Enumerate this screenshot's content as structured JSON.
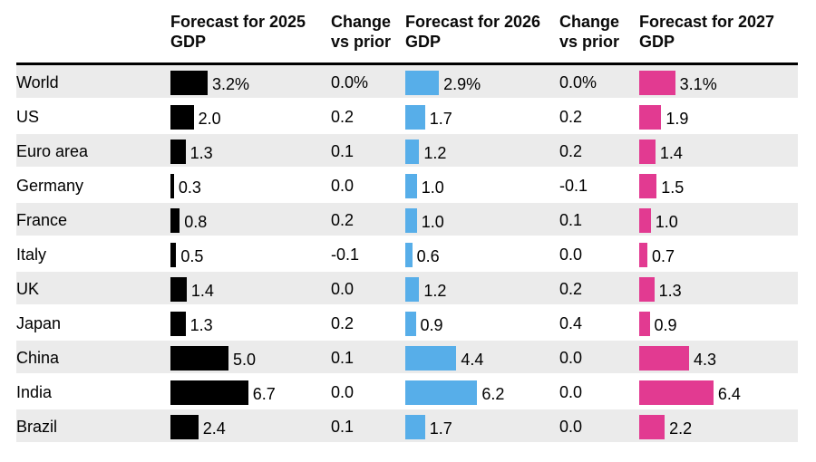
{
  "table": {
    "columns": [
      "",
      "Forecast for 2025 GDP",
      "Change vs prior",
      "Forecast for 2026 GDP",
      "Change vs prior",
      "Forecast for 2027 GDP"
    ]
  },
  "colors": {
    "bar_2025": "#000000",
    "bar_2026": "#57aee9",
    "bar_2027": "#e23a91",
    "row_stripe": "#ebebeb",
    "header_rule": "#000000"
  },
  "chart_data": {
    "type": "bar",
    "variant": "table-with-inline-bars",
    "title": "",
    "categories": [
      "World",
      "US",
      "Euro area",
      "Germany",
      "France",
      "Italy",
      "UK",
      "Japan",
      "China",
      "India",
      "Brazil"
    ],
    "series": [
      {
        "name": "Forecast for 2025 GDP",
        "kind": "bar",
        "color": "#000000",
        "values": [
          3.2,
          2.0,
          1.3,
          0.3,
          0.8,
          0.5,
          1.4,
          1.3,
          5.0,
          6.7,
          2.4
        ],
        "labels": [
          "3.2%",
          "2.0",
          "1.3",
          "0.3",
          "0.8",
          "0.5",
          "1.4",
          "1.3",
          "5.0",
          "6.7",
          "2.4"
        ]
      },
      {
        "name": "Change vs prior",
        "kind": "text",
        "values": [
          0.0,
          0.2,
          0.1,
          0.0,
          0.2,
          -0.1,
          0.0,
          0.2,
          0.1,
          0.0,
          0.1
        ],
        "labels": [
          "0.0%",
          "0.2",
          "0.1",
          "0.0",
          "0.2",
          "-0.1",
          "0.0",
          "0.2",
          "0.1",
          "0.0",
          "0.1"
        ]
      },
      {
        "name": "Forecast for 2026 GDP",
        "kind": "bar",
        "color": "#57aee9",
        "values": [
          2.9,
          1.7,
          1.2,
          1.0,
          1.0,
          0.6,
          1.2,
          0.9,
          4.4,
          6.2,
          1.7
        ],
        "labels": [
          "2.9%",
          "1.7",
          "1.2",
          "1.0",
          "1.0",
          "0.6",
          "1.2",
          "0.9",
          "4.4",
          "6.2",
          "1.7"
        ]
      },
      {
        "name": "Change vs prior",
        "kind": "text",
        "values": [
          0.0,
          0.2,
          0.2,
          -0.1,
          0.1,
          0.0,
          0.2,
          0.4,
          0.0,
          0.0,
          0.0
        ],
        "labels": [
          "0.0%",
          "0.2",
          "0.2",
          "-0.1",
          "0.1",
          "0.0",
          "0.2",
          "0.4",
          "0.0",
          "0.0",
          "0.0"
        ]
      },
      {
        "name": "Forecast for 2027 GDP",
        "kind": "bar",
        "color": "#e23a91",
        "values": [
          3.1,
          1.9,
          1.4,
          1.5,
          1.0,
          0.7,
          1.3,
          0.9,
          4.3,
          6.4,
          2.2
        ],
        "labels": [
          "3.1%",
          "1.9",
          "1.4",
          "1.5",
          "1.0",
          "0.7",
          "1.3",
          "0.9",
          "4.3",
          "6.4",
          "2.2"
        ]
      }
    ],
    "xlim": [
      0,
      7
    ],
    "grid": false,
    "legend": "none",
    "unit": "percent",
    "notes": "Rows alternate gray/white starting gray at World; % suffix shown on first row only"
  }
}
